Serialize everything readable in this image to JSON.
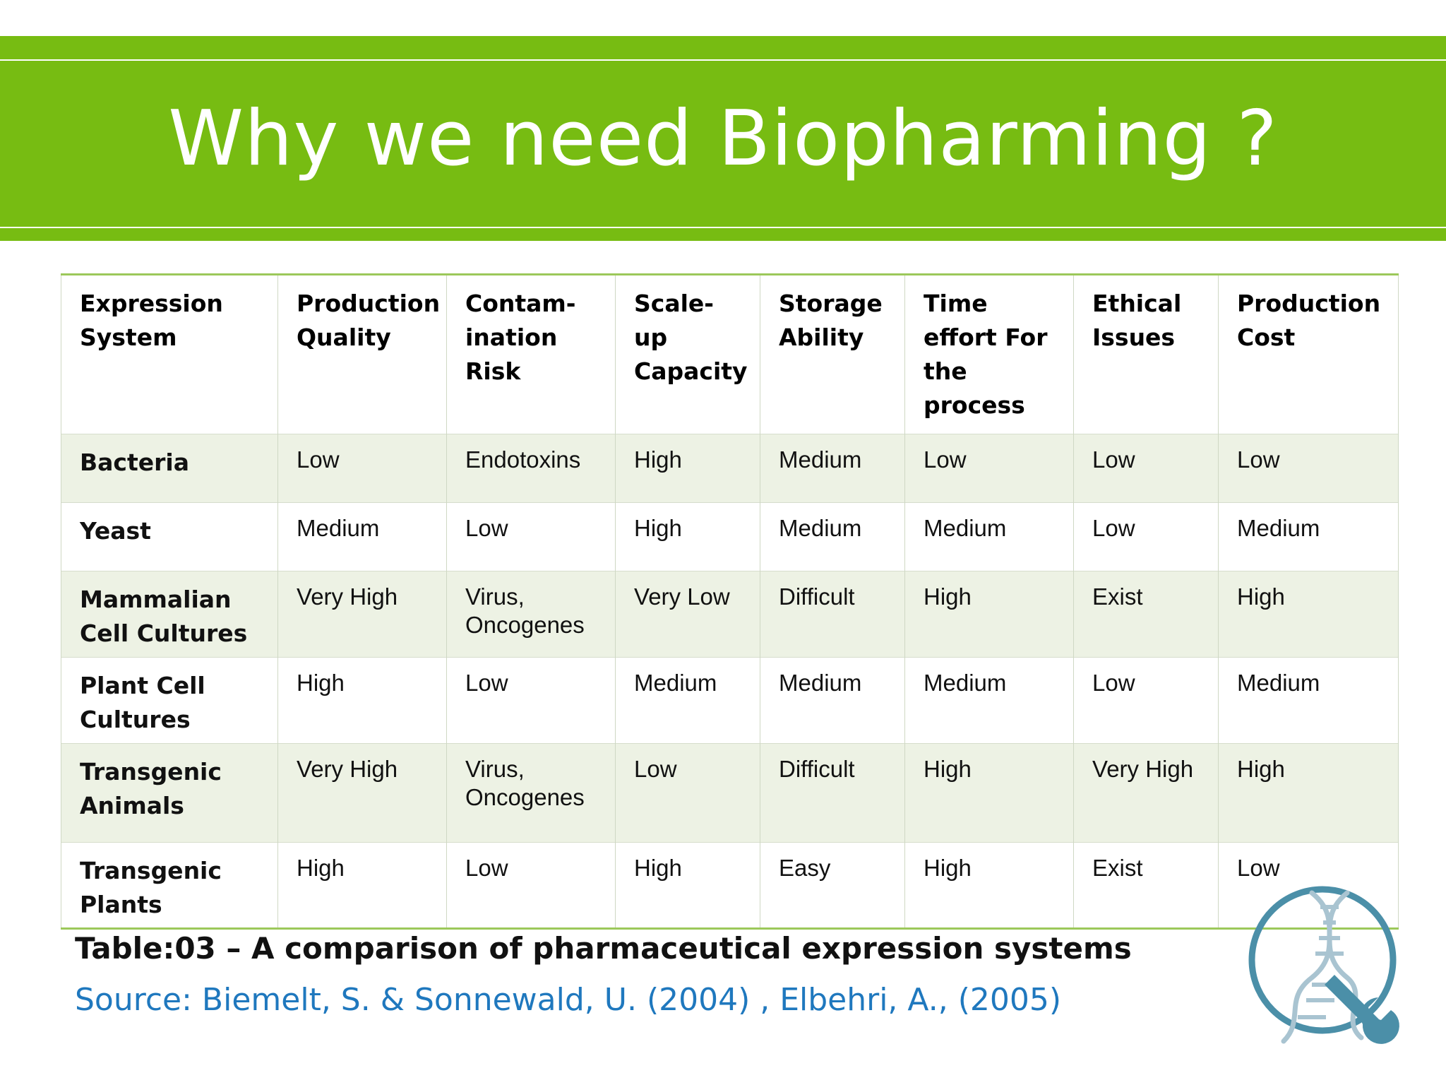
{
  "title": "Why we need Biopharming ?",
  "table": {
    "headers": [
      "Expression System",
      "Production Quality",
      "Contam-ination Risk",
      "Scale-up Capacity",
      "Storage Ability",
      "Time effort For the process",
      "Ethical Issues",
      "Production Cost"
    ],
    "rows": [
      [
        "Bacteria",
        "Low",
        "Endotoxins",
        "High",
        "Medium",
        "Low",
        "Low",
        "Low"
      ],
      [
        "Yeast",
        "Medium",
        "Low",
        "High",
        "Medium",
        "Medium",
        "Low",
        "Medium"
      ],
      [
        "Mammalian Cell Cultures",
        "Very High",
        "Virus, Oncogenes",
        "Very Low",
        "Difficult",
        "High",
        "Exist",
        "High"
      ],
      [
        "Plant Cell Cultures",
        "High",
        "Low",
        "Medium",
        "Medium",
        "Medium",
        "Low",
        "Medium"
      ],
      [
        "Transgenic Animals",
        "Very High",
        "Virus, Oncogenes",
        "Low",
        "Difficult",
        "High",
        "Very High",
        "High"
      ],
      [
        "Transgenic Plants",
        "High",
        "Low",
        "High",
        "Easy",
        "High",
        "Exist",
        "Low"
      ]
    ]
  },
  "caption": "Table:03 – A comparison  of pharmaceutical expression systems",
  "source": "Source: Biemelt, S.  & Sonnewald, U. (2004) , Elbehri, A., (2005)",
  "colors": {
    "band": "#77bc12",
    "source_text": "#1f78be",
    "row_alt": "#edf2e4",
    "logo": "#4b8fa8"
  },
  "logo_icon": "dna-wrench-icon"
}
